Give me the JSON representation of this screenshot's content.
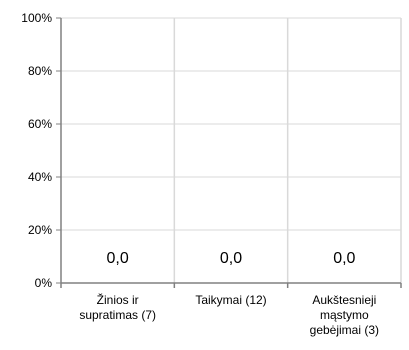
{
  "chart_data": {
    "type": "bar",
    "categories": [
      [
        "Žinios ir",
        "supratimas (7)"
      ],
      [
        "Taikymai (12)"
      ],
      [
        "Aukštesnieji",
        "mąstymo",
        "gebėjimai (3)"
      ]
    ],
    "values": [
      0,
      0,
      0
    ],
    "data_labels": [
      "0,0",
      "0,0",
      "0,0"
    ],
    "yticks": [
      "0%",
      "20%",
      "40%",
      "60%",
      "80%",
      "100%"
    ],
    "ylim": [
      0,
      100
    ],
    "grid": true,
    "title": "",
    "xlabel": "",
    "ylabel": "",
    "colors": {
      "grid": "#d9d9d9",
      "axis": "#808080",
      "text": "#000000"
    }
  }
}
